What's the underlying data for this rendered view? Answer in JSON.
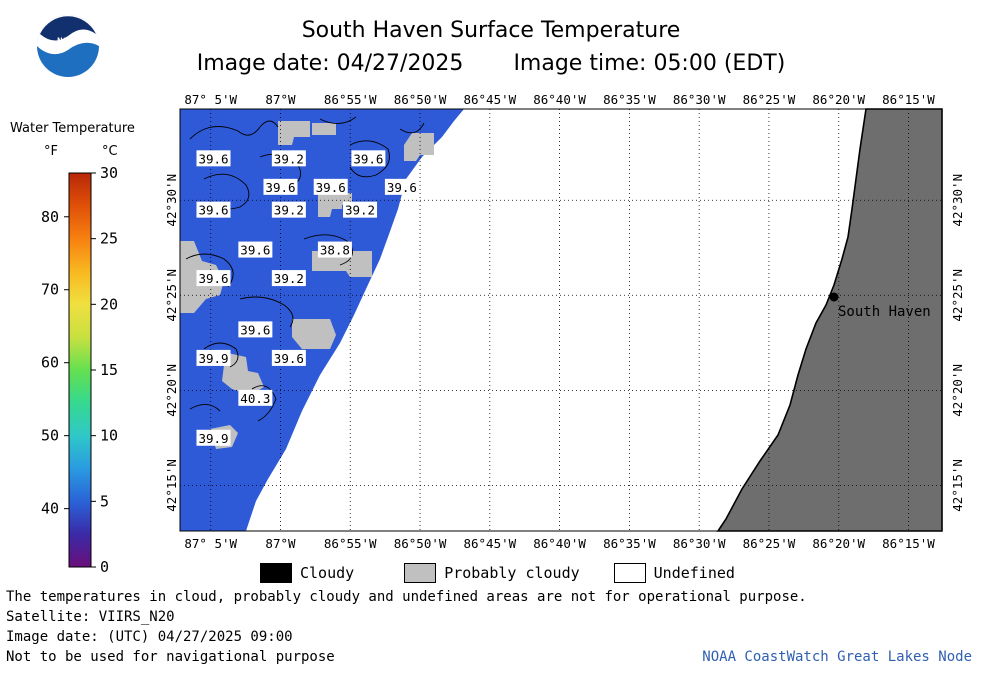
{
  "header": {
    "title": "South Haven Surface Temperature",
    "image_date_line": "Image date: 04/27/2025",
    "image_time_line": "Image time: 05:00 (EDT)"
  },
  "logo": {
    "text": "NOAA",
    "icon": "noaa-logo"
  },
  "legend": {
    "title": "Water Temperature",
    "unit_f": "°F",
    "unit_c": "°C",
    "fahrenheit_ticks": [
      {
        "label": "80",
        "value": 80
      },
      {
        "label": "70",
        "value": 70
      },
      {
        "label": "60",
        "value": 60
      },
      {
        "label": "50",
        "value": 50
      },
      {
        "label": "40",
        "value": 40
      }
    ],
    "celsius_ticks": [
      {
        "label": "30",
        "value": 30
      },
      {
        "label": "25",
        "value": 25
      },
      {
        "label": "20",
        "value": 20
      },
      {
        "label": "15",
        "value": 15
      },
      {
        "label": "10",
        "value": 10
      },
      {
        "label": "5",
        "value": 5
      },
      {
        "label": "0",
        "value": 0
      }
    ],
    "celsius_range": [
      0,
      30
    ],
    "colors": [
      "#6a0f7a",
      "#3a2aa8",
      "#2a63d8",
      "#2a9be0",
      "#2fc8c8",
      "#36d890",
      "#64e050",
      "#c8e040",
      "#f0e040",
      "#f8b820",
      "#f88010",
      "#e05008",
      "#b82808"
    ]
  },
  "map": {
    "top_lon_labels": [
      "87° 5'W",
      "87°W",
      "86°55'W",
      "86°50'W",
      "86°45'W",
      "86°40'W",
      "86°35'W",
      "86°30'W",
      "86°25'W",
      "86°20'W",
      "86°15'W"
    ],
    "bottom_lon_labels": [
      "87° 5'W",
      "87°W",
      "86°55'W",
      "86°50'W",
      "86°45'W",
      "86°40'W",
      "86°35'W",
      "86°30'W",
      "86°25'W",
      "86°20'W",
      "86°15'W"
    ],
    "lat_labels": [
      "42°30'N",
      "42°25'N",
      "42°20'N",
      "42°15'N"
    ],
    "place_label": "South Haven",
    "water_color": "#2e5ad8",
    "cloud_color": "#c0c0c0",
    "land_color": "#6e6e6e",
    "temperature_labels": [
      {
        "text": "39.6",
        "lon": -87.08,
        "lat": 42.535
      },
      {
        "text": "39.2",
        "lon": -86.99,
        "lat": 42.535
      },
      {
        "text": "39.6",
        "lon": -86.895,
        "lat": 42.535
      },
      {
        "text": "39.6",
        "lon": -87.0,
        "lat": 42.51
      },
      {
        "text": "39.6",
        "lon": -86.94,
        "lat": 42.51
      },
      {
        "text": "39.6",
        "lon": -86.855,
        "lat": 42.51
      },
      {
        "text": "39.6",
        "lon": -87.08,
        "lat": 42.49
      },
      {
        "text": "39.2",
        "lon": -86.99,
        "lat": 42.49
      },
      {
        "text": "39.2",
        "lon": -86.905,
        "lat": 42.49
      },
      {
        "text": "39.6",
        "lon": -87.03,
        "lat": 42.455
      },
      {
        "text": "38.8",
        "lon": -86.935,
        "lat": 42.455
      },
      {
        "text": "39.6",
        "lon": -87.08,
        "lat": 42.43
      },
      {
        "text": "39.2",
        "lon": -86.99,
        "lat": 42.43
      },
      {
        "text": "39.6",
        "lon": -87.03,
        "lat": 42.385
      },
      {
        "text": "39.9",
        "lon": -87.08,
        "lat": 42.36
      },
      {
        "text": "39.6",
        "lon": -86.99,
        "lat": 42.36
      },
      {
        "text": "40.3",
        "lon": -87.03,
        "lat": 42.325
      },
      {
        "text": "39.9",
        "lon": -87.08,
        "lat": 42.29
      }
    ]
  },
  "key": [
    {
      "label": "Cloudy",
      "color": "#000000"
    },
    {
      "label": "Probably cloudy",
      "color": "#c0c0c0"
    },
    {
      "label": "Undefined",
      "color": "#ffffff"
    }
  ],
  "footer": {
    "disclaimer": "The temperatures in cloud, probably cloudy and undefined areas are not for operational purpose.",
    "satellite": "Satellite: VIIRS_N20",
    "utc_date": "Image date: (UTC) 04/27/2025  09:00",
    "nav_warning": "Not to be used for navigational purpose",
    "credit": "NOAA CoastWatch Great Lakes Node"
  }
}
